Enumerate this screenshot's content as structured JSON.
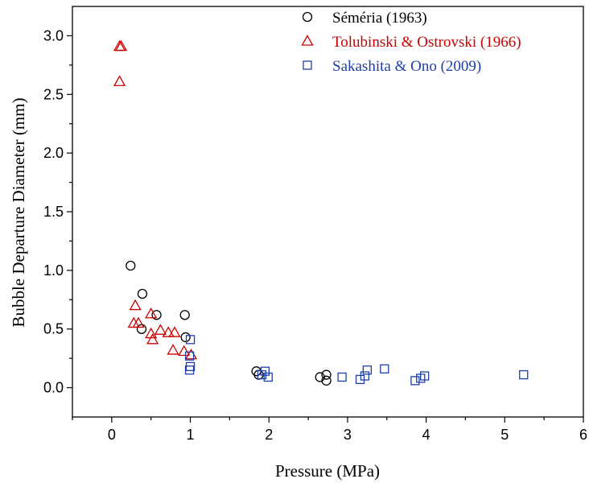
{
  "chart_data": {
    "type": "scatter",
    "xlabel": "Pressure (MPa)",
    "ylabel": "Bubble Departure Diameter (mm)",
    "xlim": [
      -0.5,
      6
    ],
    "ylim": [
      -0.25,
      3.25
    ],
    "xticks": [
      0,
      1,
      2,
      3,
      4,
      5,
      6
    ],
    "xtick_labels": [
      "0",
      "1",
      "2",
      "3",
      "4",
      "5",
      "6"
    ],
    "yticks": [
      0.0,
      0.5,
      1.0,
      1.5,
      2.0,
      2.5,
      3.0
    ],
    "ytick_labels": [
      "0.0",
      "0.5",
      "1.0",
      "1.5",
      "2.0",
      "2.5",
      "3.0"
    ],
    "grid": false,
    "legend_position": "top-right",
    "series": [
      {
        "name": "Séméria (1963)",
        "marker": "circle",
        "color": "#000000",
        "x": [
          0.24,
          0.39,
          0.38,
          0.57,
          0.93,
          0.94,
          1.84,
          1.87,
          2.65,
          2.73,
          2.73
        ],
        "y": [
          1.04,
          0.8,
          0.5,
          0.62,
          0.62,
          0.43,
          0.14,
          0.11,
          0.09,
          0.11,
          0.06
        ]
      },
      {
        "name": "Tolubinski & Ostrovski (1966)",
        "marker": "triangle",
        "color": "#cc0000",
        "x": [
          0.1,
          0.12,
          0.1,
          0.3,
          0.28,
          0.34,
          0.5,
          0.5,
          0.52,
          0.62,
          0.72,
          0.78,
          0.8,
          0.92,
          1.01
        ],
        "y": [
          2.91,
          2.91,
          2.61,
          0.7,
          0.55,
          0.55,
          0.63,
          0.46,
          0.41,
          0.49,
          0.47,
          0.32,
          0.47,
          0.31,
          0.28
        ]
      },
      {
        "name": "Sakashita & Ono (2009)",
        "marker": "square",
        "color": "#1f3fa8",
        "x": [
          1.0,
          0.99,
          1.0,
          0.99,
          1.91,
          1.95,
          1.99,
          2.93,
          3.16,
          3.22,
          3.25,
          3.47,
          3.86,
          3.93,
          3.98,
          5.24
        ],
        "y": [
          0.41,
          0.27,
          0.18,
          0.15,
          0.11,
          0.14,
          0.09,
          0.09,
          0.07,
          0.1,
          0.15,
          0.16,
          0.06,
          0.08,
          0.1,
          0.11
        ]
      }
    ]
  }
}
